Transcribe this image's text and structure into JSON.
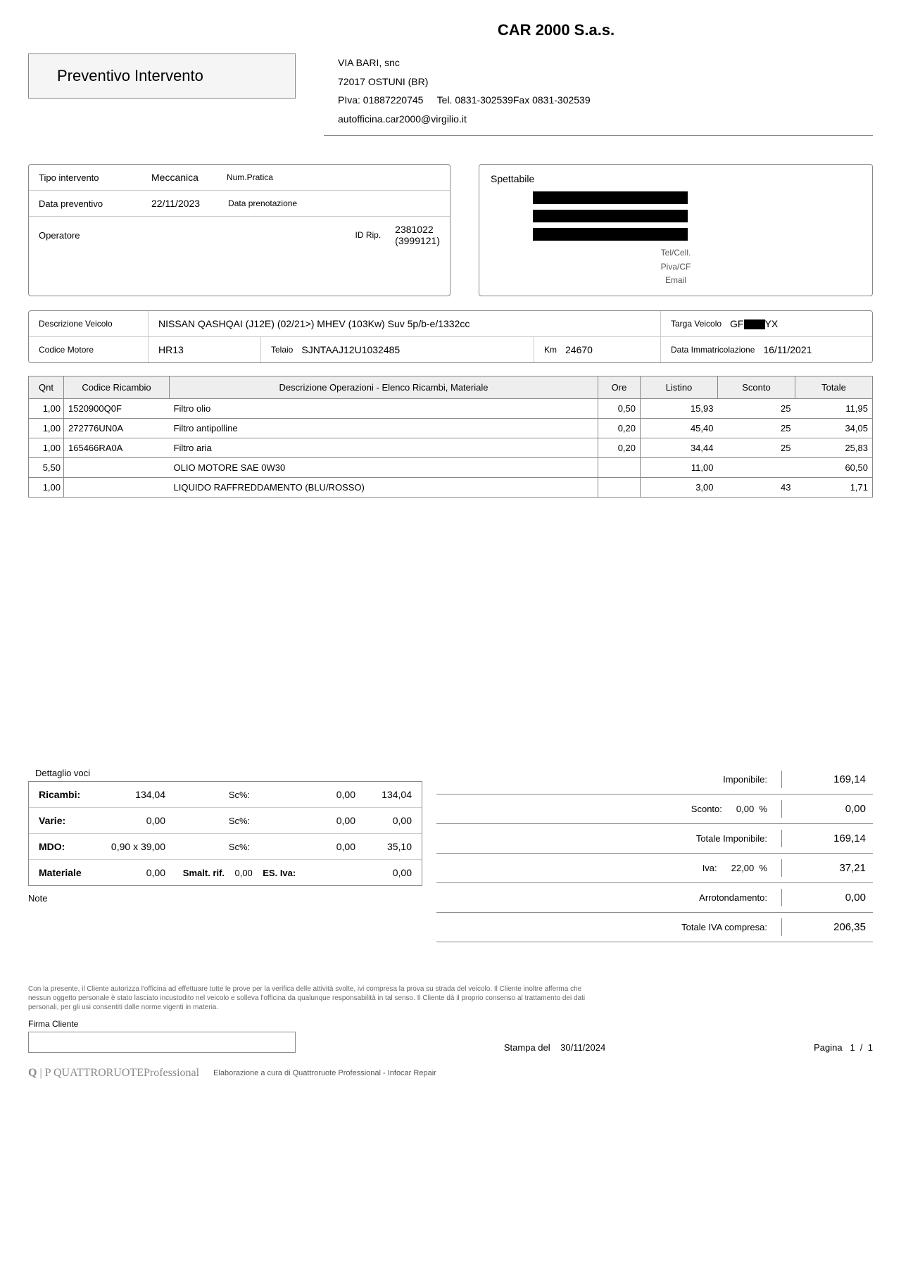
{
  "company": {
    "name": "CAR 2000 S.a.s.",
    "addr1": "VIA BARI, snc",
    "addr2": "72017   OSTUNI (BR)",
    "piva_label": "PIva:",
    "piva": "01887220745",
    "tel_label": "Tel.",
    "tel": "0831-302539",
    "fax_label": "Fax",
    "fax": "0831-302539",
    "email": "autofficina.car2000@virgilio.it"
  },
  "doc_title": "Preventivo Intervento",
  "intervento": {
    "tipo_label": "Tipo intervento",
    "tipo": "Meccanica",
    "numpratica_label": "Num.Pratica",
    "data_label": "Data preventivo",
    "data": "22/11/2023",
    "dataprenot_label": "Data prenotazione",
    "operatore_label": "Operatore",
    "idrip_label": "ID Rip.",
    "idrip1": "2381022",
    "idrip2": "(3999121)"
  },
  "spettabile": {
    "title": "Spettabile",
    "telcell": "Tel/Cell.",
    "pivacf": "Piva/CF",
    "email": "Email"
  },
  "vehicle": {
    "desc_label": "Descrizione Veicolo",
    "desc": "NISSAN QASHQAI (J12E) (02/21>) MHEV (103Kw) Suv 5p/b-e/1332cc",
    "targa_label": "Targa Veicolo",
    "targa_pre": "GF",
    "targa_post": "YX",
    "motore_label": "Codice Motore",
    "motore": "HR13",
    "telaio_label": "Telaio",
    "telaio": "SJNTAAJ12U1032485",
    "km_label": "Km",
    "km": "24670",
    "immatr_label": "Data Immatricolazione",
    "immatr": "16/11/2021"
  },
  "table": {
    "headers": {
      "qnt": "Qnt",
      "codice": "Codice Ricambio",
      "desc": "Descrizione Operazioni - Elenco Ricambi, Materiale",
      "ore": "Ore",
      "listino": "Listino",
      "sconto": "Sconto",
      "totale": "Totale"
    },
    "rows": [
      {
        "qnt": "1,00",
        "codice": "1520900Q0F",
        "desc": "Filtro olio",
        "ore": "0,50",
        "listino": "15,93",
        "sconto": "25",
        "totale": "11,95"
      },
      {
        "qnt": "1,00",
        "codice": "272776UN0A",
        "desc": "Filtro antipolline",
        "ore": "0,20",
        "listino": "45,40",
        "sconto": "25",
        "totale": "34,05"
      },
      {
        "qnt": "1,00",
        "codice": "165466RA0A",
        "desc": "Filtro aria",
        "ore": "0,20",
        "listino": "34,44",
        "sconto": "25",
        "totale": "25,83"
      },
      {
        "qnt": "5,50",
        "codice": "",
        "desc": "OLIO MOTORE SAE 0W30",
        "ore": "",
        "listino": "11,00",
        "sconto": "",
        "totale": "60,50"
      },
      {
        "qnt": "1,00",
        "codice": "",
        "desc": "LIQUIDO RAFFREDDAMENTO (BLU/ROSSO)",
        "ore": "",
        "listino": "3,00",
        "sconto": "43",
        "totale": "1,71"
      }
    ]
  },
  "dettaglio": {
    "title": "Dettaglio voci",
    "ricambi_label": "Ricambi:",
    "ricambi_val": "134,04",
    "sc_label": "Sc%:",
    "ricambi_sc": "0,00",
    "ricambi_tot": "134,04",
    "varie_label": "Varie:",
    "varie_val": "0,00",
    "varie_sc": "0,00",
    "varie_tot": "0,00",
    "mdo_label": "MDO:",
    "mdo_h": "0,90",
    "mdo_x": "x",
    "mdo_rate": "39,00",
    "mdo_sc": "0,00",
    "mdo_tot": "35,10",
    "mat_label": "Materiale",
    "mat_val": "0,00",
    "smalt_label": "Smalt. rif.",
    "smalt_val": "0,00",
    "esiva_label": "ES. Iva:",
    "esiva_val": "0,00"
  },
  "totals": {
    "imponibile_label": "Imponibile:",
    "imponibile": "169,14",
    "sconto_label": "Sconto:",
    "sconto_pct": "0,00",
    "pct": "%",
    "sconto_val": "0,00",
    "totimp_label": "Totale Imponibile:",
    "totimp": "169,14",
    "iva_label": "Iva:",
    "iva_pct": "22,00",
    "iva_val": "37,21",
    "arrot_label": "Arrotondamento:",
    "arrot": "0,00",
    "totivac_label": "Totale IVA compresa:",
    "totivac": "206,35"
  },
  "note_label": "Note",
  "legal": "Con la presente, il Cliente autorizza l'officina ad effettuare tutte le prove per la verifica delle attività svolte, ivi compresa la prova su strada del veicolo. Il Cliente inoltre afferma che nessun oggetto personale è stato lasciato incustodito nel veicolo e solleva l'officina da qualunque responsabilità in tal senso. Il Cliente dà il proprio consenso al trattamento dei dati personali, per gli usi consentiti dalle norme vigenti in materia.",
  "firma_label": "Firma Cliente",
  "stampa_label": "Stampa del",
  "stampa_date": "30/11/2024",
  "pagina_label": "Pagina",
  "pagina_cur": "1",
  "pagina_sep": "/",
  "pagina_tot": "1",
  "brand": {
    "name": "QUATTRORUOTE",
    "suffix": "Professional",
    "credit": "Elaborazione a cura di Quattroruote Professional - Infocar Repair"
  }
}
